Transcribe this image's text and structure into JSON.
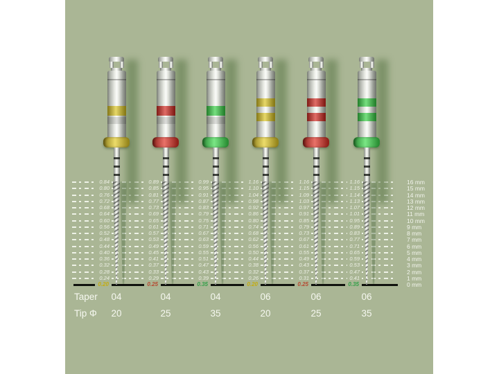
{
  "panel": {
    "page_bg": "#ffffff",
    "panel_bg": "#aab695"
  },
  "scale": {
    "mm_labels": [
      "16 mm",
      "15 mm",
      "14 mm",
      "13 mm",
      "12 mm",
      "11 mm",
      "10 mm",
      "9 mm",
      "8 mm",
      "7 mm",
      "6 mm",
      "5 mm",
      "4 mm",
      "3 mm",
      "2 mm",
      "1 mm",
      "0 mm"
    ]
  },
  "footer": {
    "taper_label": "Taper",
    "tip_label": "Tip Φ"
  },
  "files": [
    {
      "taper": "04",
      "tip": "20",
      "tip_diameter": "0.20",
      "color_name": "yellow",
      "ring_hex": "#dcc626",
      "collar_hex": "#e5cd2a",
      "tip_text_hex": "#c4ad10",
      "rings": 1,
      "diameters": [
        "0.84",
        "0.80",
        "0.76",
        "0.72",
        "0.68",
        "0.64",
        "0.60",
        "0.56",
        "0.52",
        "0.48",
        "0.44",
        "0.40",
        "0.36",
        "0.32",
        "0.28",
        "0.24"
      ]
    },
    {
      "taper": "04",
      "tip": "25",
      "tip_diameter": "0.25",
      "color_name": "red",
      "ring_hex": "#d32d24",
      "collar_hex": "#e03428",
      "tip_text_hex": "#b64a31",
      "rings": 1,
      "diameters": [
        "0.89",
        "0.85",
        "0.81",
        "0.77",
        "0.73",
        "0.69",
        "0.65",
        "0.61",
        "0.57",
        "0.53",
        "0.49",
        "0.45",
        "0.41",
        "0.37",
        "0.33",
        "0.29"
      ]
    },
    {
      "taper": "04",
      "tip": "35",
      "tip_diameter": "0.35",
      "color_name": "green",
      "ring_hex": "#3bd148",
      "collar_hex": "#41dc50",
      "tip_text_hex": "#35a04a",
      "rings": 1,
      "diameters": [
        "0.99",
        "0.95",
        "0.91",
        "0.87",
        "0.83",
        "0.79",
        "0.75",
        "0.71",
        "0.67",
        "0.63",
        "0.59",
        "0.55",
        "0.51",
        "0.47",
        "0.43",
        "0.39"
      ]
    },
    {
      "taper": "06",
      "tip": "20",
      "tip_diameter": "0.20",
      "color_name": "yellow",
      "ring_hex": "#dcc626",
      "collar_hex": "#e5cd2a",
      "tip_text_hex": "#c4ad10",
      "rings": 2,
      "diameters": [
        "1.16",
        "1.10",
        "1.04",
        "0.98",
        "0.92",
        "0.86",
        "0.80",
        "0.74",
        "0.68",
        "0.62",
        "0.56",
        "0.50",
        "0.44",
        "0.38",
        "0.32",
        "0.26"
      ]
    },
    {
      "taper": "06",
      "tip": "25",
      "tip_diameter": "0.25",
      "color_name": "red",
      "ring_hex": "#d32d24",
      "collar_hex": "#e03428",
      "tip_text_hex": "#b64a31",
      "rings": 2,
      "diameters": [
        "1.16",
        "1.15",
        "1.09",
        "1.03",
        "0.97",
        "0.91",
        "0.85",
        "0.79",
        "0.73",
        "0.67",
        "0.61",
        "0.55",
        "0.49",
        "0.43",
        "0.37",
        "0.31"
      ]
    },
    {
      "taper": "06",
      "tip": "35",
      "tip_diameter": "0.35",
      "color_name": "green",
      "ring_hex": "#3bd148",
      "collar_hex": "#41dc50",
      "tip_text_hex": "#35a04a",
      "rings": 2,
      "diameters": [
        "1.16",
        "1.15",
        "1.14",
        "1.13",
        "1.07",
        "1.01",
        "0.95",
        "0.89",
        "0.83",
        "0.77",
        "0.71",
        "0.65",
        "0.59",
        "0.53",
        "0.47",
        "0.41"
      ]
    }
  ]
}
